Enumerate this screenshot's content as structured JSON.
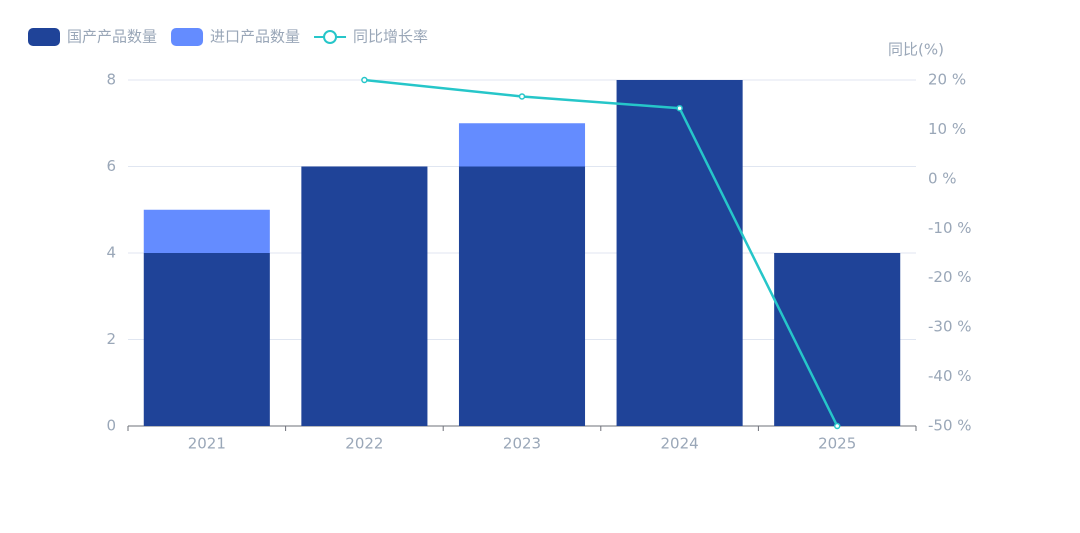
{
  "chart_data": {
    "type": "bar-line",
    "categories": [
      "2021",
      "2022",
      "2023",
      "2024",
      "2025"
    ],
    "series": [
      {
        "name": "国产产品数量",
        "color": "#1f4398",
        "type": "bar",
        "values": [
          4,
          6,
          6,
          8,
          4
        ]
      },
      {
        "name": "进口产品数量",
        "color": "#648cff",
        "type": "bar",
        "values": [
          1,
          0,
          1,
          0,
          0
        ]
      },
      {
        "name": "同比增长率",
        "color": "#26c6c9",
        "type": "line",
        "axis": "y2",
        "values": [
          null,
          20,
          16.67,
          14.29,
          -50
        ]
      }
    ],
    "stacked": true,
    "ylim": [
      0,
      8
    ],
    "yticks": [
      0,
      2,
      4,
      6,
      8
    ],
    "y2label": "同比(%)",
    "y2lim": [
      -50,
      20
    ],
    "y2ticks": [
      {
        "value": -50,
        "label": "-50 %"
      },
      {
        "value": -40,
        "label": "-40 %"
      },
      {
        "value": -30,
        "label": "-30 %"
      },
      {
        "value": -20,
        "label": "-20 %"
      },
      {
        "value": -10,
        "label": "-10 %"
      },
      {
        "value": 0,
        "label": "0 %"
      },
      {
        "value": 10,
        "label": "10 %"
      },
      {
        "value": 20,
        "label": "20 %"
      }
    ],
    "grid": true,
    "legend": "top-left"
  }
}
